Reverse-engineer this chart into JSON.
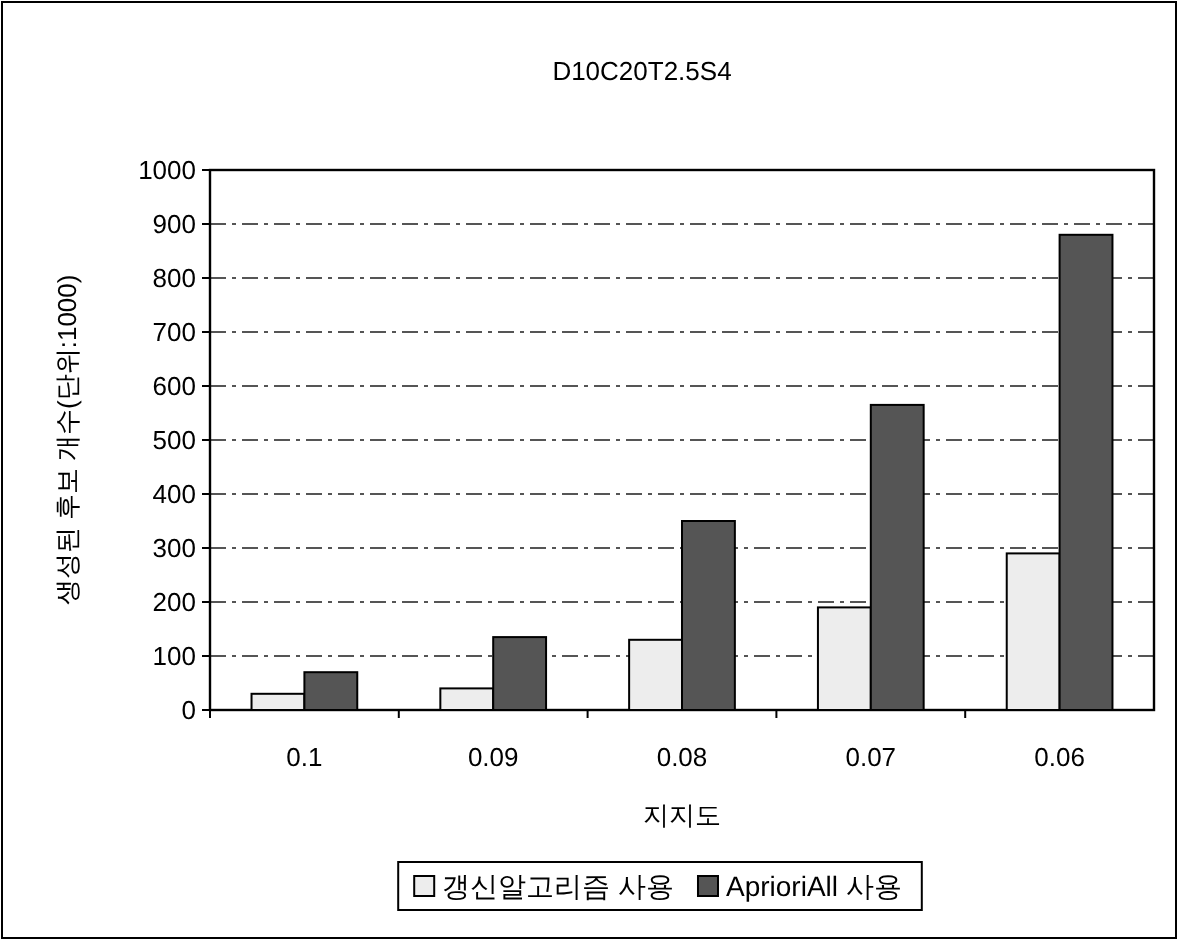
{
  "chart_data": {
    "type": "bar",
    "title": "D10C20T2.5S4",
    "xlabel": "지지도",
    "ylabel": "생성된 후보 개수(단위:1000)",
    "categories": [
      "0.1",
      "0.09",
      "0.08",
      "0.07",
      "0.06"
    ],
    "series": [
      {
        "name": "갱신알고리즘 사용",
        "color": "#ededed",
        "values": [
          30,
          40,
          130,
          190,
          290
        ]
      },
      {
        "name": "AprioriAll 사용",
        "color": "#555555",
        "values": [
          70,
          135,
          350,
          565,
          880
        ]
      }
    ],
    "ylim": [
      0,
      1000
    ],
    "yticks": [
      0,
      100,
      200,
      300,
      400,
      500,
      600,
      700,
      800,
      900,
      1000
    ],
    "grid": "y",
    "legend": "bottom"
  }
}
